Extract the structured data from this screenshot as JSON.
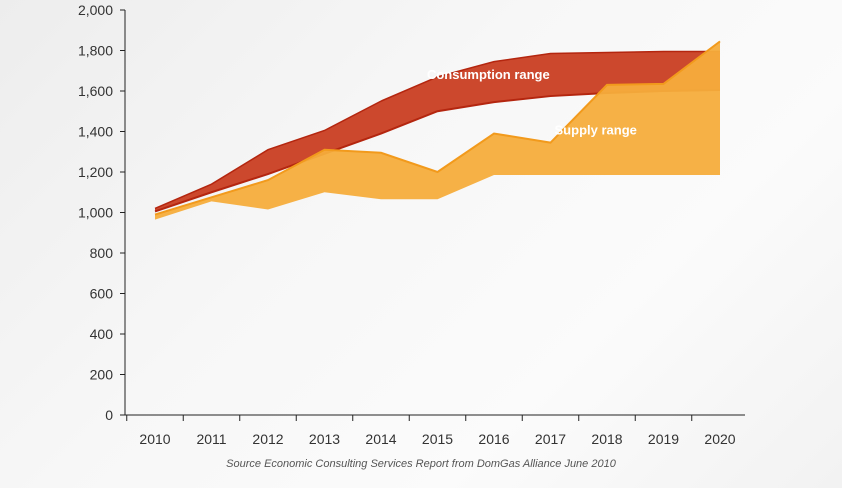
{
  "chart_data": {
    "type": "area",
    "x": [
      2010,
      2011,
      2012,
      2013,
      2014,
      2015,
      2016,
      2017,
      2018,
      2019,
      2020
    ],
    "xticks": [
      "2010",
      "2011",
      "2012",
      "2013",
      "2014",
      "2015",
      "2016",
      "2017",
      "2018",
      "2019",
      "2020"
    ],
    "yticks": [
      "0",
      "200",
      "400",
      "600",
      "800",
      "1,000",
      "1,200",
      "1,400",
      "1,600",
      "1,800",
      "2,000"
    ],
    "ylim": [
      0,
      2000
    ],
    "grid": false,
    "series": [
      {
        "name": "Consumption range",
        "color": "#c8381b",
        "upper": [
          1020,
          1140,
          1310,
          1405,
          1550,
          1670,
          1745,
          1785,
          1790,
          1795,
          1795
        ],
        "lower": [
          1005,
          1100,
          1190,
          1290,
          1390,
          1500,
          1545,
          1575,
          1590,
          1600,
          1605
        ]
      },
      {
        "name": "Supply range",
        "color": "#f5ad3c",
        "line_color": "#f29a1c",
        "upper": [
          990,
          1075,
          1160,
          1310,
          1295,
          1200,
          1390,
          1345,
          1630,
          1635,
          1845
        ],
        "lower": [
          965,
          1055,
          1015,
          1100,
          1065,
          1065,
          1185,
          1185,
          1185,
          1185,
          1185
        ]
      }
    ],
    "annotations": [
      {
        "text": "Consumption range",
        "x": 2015.9,
        "y": 1660
      },
      {
        "text": "Supply range",
        "x": 2017.8,
        "y": 1385
      }
    ]
  },
  "source": "Source Economic Consulting Services Report from DomGas Alliance June 2010"
}
